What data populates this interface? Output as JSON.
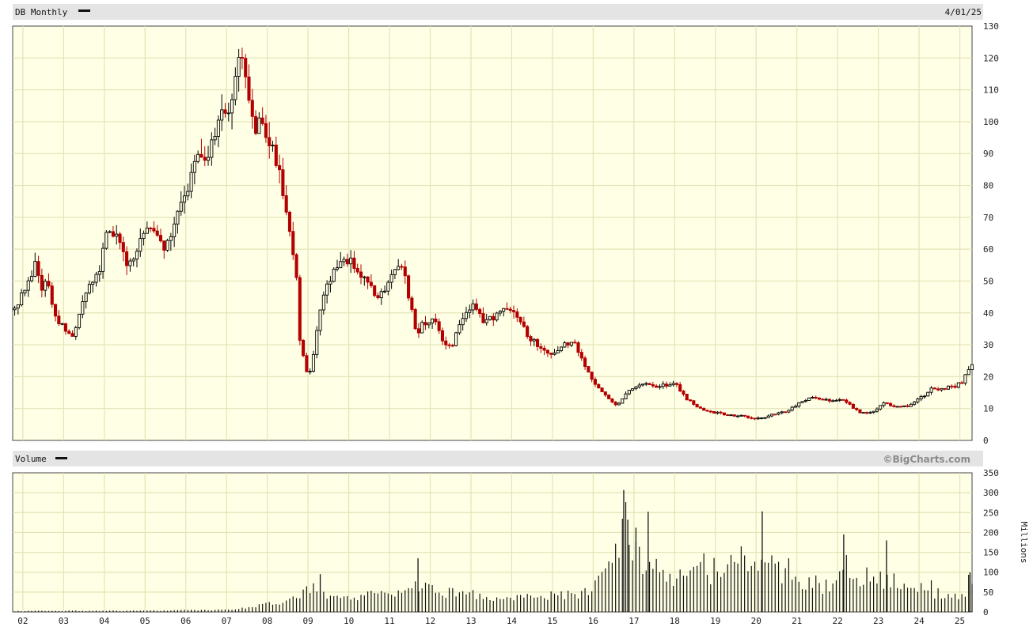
{
  "header": {
    "symbol_label": "DB Monthly",
    "date_label": "4/01/25"
  },
  "volume_header": {
    "label": "Volume",
    "brand": "©BigCharts.com",
    "unit_label": "Millions"
  },
  "colors": {
    "plot_bg": "#ffffe6",
    "grid": "#e3e3b6",
    "header_bg": "#e4e4e4",
    "up": "#000000",
    "down": "#b30000"
  },
  "chart_data": [
    {
      "type": "candlestick",
      "title": "DB Monthly",
      "ylim": [
        0,
        130
      ],
      "yticks": [
        0,
        10,
        20,
        30,
        40,
        50,
        60,
        70,
        80,
        90,
        100,
        110,
        120,
        130
      ],
      "xlim": [
        2001.75,
        2025.3
      ],
      "xticks": [
        {
          "x": 2002,
          "label": "02"
        },
        {
          "x": 2003,
          "label": "03"
        },
        {
          "x": 2004,
          "label": "04"
        },
        {
          "x": 2005,
          "label": "05"
        },
        {
          "x": 2006,
          "label": "06"
        },
        {
          "x": 2007,
          "label": "07"
        },
        {
          "x": 2008,
          "label": "08"
        },
        {
          "x": 2009,
          "label": "09"
        },
        {
          "x": 2010,
          "label": "10"
        },
        {
          "x": 2011,
          "label": "11"
        },
        {
          "x": 2012,
          "label": "12"
        },
        {
          "x": 2013,
          "label": "13"
        },
        {
          "x": 2014,
          "label": "14"
        },
        {
          "x": 2015,
          "label": "15"
        },
        {
          "x": 2016,
          "label": "16"
        },
        {
          "x": 2017,
          "label": "17"
        },
        {
          "x": 2018,
          "label": "18"
        },
        {
          "x": 2019,
          "label": "19"
        },
        {
          "x": 2020,
          "label": "20"
        },
        {
          "x": 2021,
          "label": "21"
        },
        {
          "x": 2022,
          "label": "22"
        },
        {
          "x": 2023,
          "label": "23"
        },
        {
          "x": 2024,
          "label": "24"
        },
        {
          "x": 2025,
          "label": "25"
        }
      ],
      "close_anchors": [
        [
          2001.8,
          41
        ],
        [
          2002.1,
          50
        ],
        [
          2002.3,
          55
        ],
        [
          2002.5,
          47
        ],
        [
          2002.6,
          52
        ],
        [
          2002.8,
          38
        ],
        [
          2003.0,
          36
        ],
        [
          2003.2,
          31
        ],
        [
          2003.4,
          40
        ],
        [
          2003.6,
          48
        ],
        [
          2003.85,
          52
        ],
        [
          2004.0,
          63
        ],
        [
          2004.2,
          66
        ],
        [
          2004.4,
          60
        ],
        [
          2004.6,
          55
        ],
        [
          2004.8,
          59
        ],
        [
          2005.0,
          67
        ],
        [
          2005.3,
          66
        ],
        [
          2005.5,
          60
        ],
        [
          2005.8,
          70
        ],
        [
          2006.0,
          78
        ],
        [
          2006.3,
          92
        ],
        [
          2006.5,
          89
        ],
        [
          2006.7,
          97
        ],
        [
          2006.9,
          102
        ],
        [
          2007.1,
          107
        ],
        [
          2007.35,
          121
        ],
        [
          2007.5,
          112
        ],
        [
          2007.65,
          98
        ],
        [
          2007.85,
          100
        ],
        [
          2008.05,
          93
        ],
        [
          2008.3,
          84
        ],
        [
          2008.5,
          68
        ],
        [
          2008.7,
          55
        ],
        [
          2008.8,
          32
        ],
        [
          2009.0,
          19
        ],
        [
          2009.15,
          28
        ],
        [
          2009.3,
          41
        ],
        [
          2009.5,
          50
        ],
        [
          2009.75,
          55
        ],
        [
          2010.0,
          57
        ],
        [
          2010.25,
          52
        ],
        [
          2010.5,
          48
        ],
        [
          2010.7,
          45
        ],
        [
          2010.9,
          46
        ],
        [
          2011.1,
          53
        ],
        [
          2011.3,
          55
        ],
        [
          2011.5,
          44
        ],
        [
          2011.65,
          33
        ],
        [
          2011.8,
          36
        ],
        [
          2012.1,
          39
        ],
        [
          2012.3,
          32
        ],
        [
          2012.5,
          29
        ],
        [
          2012.8,
          38
        ],
        [
          2013.1,
          43
        ],
        [
          2013.3,
          37
        ],
        [
          2013.6,
          39
        ],
        [
          2013.9,
          42
        ],
        [
          2014.1,
          40
        ],
        [
          2014.4,
          33
        ],
        [
          2014.7,
          29
        ],
        [
          2015.0,
          27
        ],
        [
          2015.2,
          30
        ],
        [
          2015.5,
          31
        ],
        [
          2015.75,
          25
        ],
        [
          2016.0,
          18
        ],
        [
          2016.3,
          14
        ],
        [
          2016.6,
          11
        ],
        [
          2016.9,
          16
        ],
        [
          2017.2,
          18
        ],
        [
          2017.6,
          17
        ],
        [
          2018.0,
          18
        ],
        [
          2018.3,
          13
        ],
        [
          2018.6,
          10
        ],
        [
          2018.9,
          9
        ],
        [
          2019.3,
          8
        ],
        [
          2019.7,
          7.5
        ],
        [
          2020.1,
          7
        ],
        [
          2020.4,
          8
        ],
        [
          2020.8,
          9.5
        ],
        [
          2021.1,
          12
        ],
        [
          2021.4,
          14
        ],
        [
          2021.7,
          12.5
        ],
        [
          2022.1,
          13
        ],
        [
          2022.3,
          11
        ],
        [
          2022.6,
          8.5
        ],
        [
          2022.9,
          9
        ],
        [
          2023.1,
          12
        ],
        [
          2023.4,
          10.5
        ],
        [
          2023.8,
          11
        ],
        [
          2024.0,
          13
        ],
        [
          2024.3,
          16
        ],
        [
          2024.6,
          16.5
        ],
        [
          2024.9,
          17
        ],
        [
          2025.1,
          19
        ],
        [
          2025.25,
          24
        ]
      ]
    },
    {
      "type": "bar",
      "title": "Volume",
      "ylabel": "Millions",
      "ylim": [
        0,
        350
      ],
      "yticks": [
        0,
        50,
        100,
        150,
        200,
        250,
        300,
        350
      ],
      "volume_anchors": [
        [
          2001.8,
          2
        ],
        [
          2003.0,
          3
        ],
        [
          2005.0,
          3
        ],
        [
          2006.5,
          5
        ],
        [
          2007.3,
          8
        ],
        [
          2008.0,
          20
        ],
        [
          2008.5,
          30
        ],
        [
          2008.9,
          55
        ],
        [
          2009.2,
          70
        ],
        [
          2009.5,
          35
        ],
        [
          2010.0,
          40
        ],
        [
          2010.5,
          45
        ],
        [
          2011.0,
          38
        ],
        [
          2011.5,
          55
        ],
        [
          2011.8,
          70
        ],
        [
          2012.3,
          50
        ],
        [
          2012.8,
          45
        ],
        [
          2013.3,
          40
        ],
        [
          2013.8,
          30
        ],
        [
          2014.3,
          35
        ],
        [
          2014.8,
          40
        ],
        [
          2015.3,
          45
        ],
        [
          2015.8,
          50
        ],
        [
          2016.2,
          80
        ],
        [
          2016.6,
          130
        ],
        [
          2016.8,
          220
        ],
        [
          2017.1,
          150
        ],
        [
          2017.5,
          100
        ],
        [
          2018.0,
          90
        ],
        [
          2018.4,
          115
        ],
        [
          2018.9,
          100
        ],
        [
          2019.5,
          110
        ],
        [
          2020.0,
          125
        ],
        [
          2020.4,
          110
        ],
        [
          2020.8,
          85
        ],
        [
          2021.2,
          70
        ],
        [
          2021.7,
          65
        ],
        [
          2022.2,
          115
        ],
        [
          2022.6,
          95
        ],
        [
          2023.0,
          85
        ],
        [
          2023.4,
          65
        ],
        [
          2023.8,
          60
        ],
        [
          2024.2,
          55
        ],
        [
          2024.6,
          45
        ],
        [
          2024.9,
          35
        ],
        [
          2025.2,
          60
        ]
      ],
      "volume_spikes": [
        [
          2016.75,
          307
        ],
        [
          2016.85,
          232
        ],
        [
          2017.05,
          212
        ],
        [
          2017.35,
          252
        ],
        [
          2020.15,
          253
        ],
        [
          2022.15,
          195
        ],
        [
          2023.2,
          180
        ],
        [
          2011.7,
          135
        ],
        [
          2009.3,
          95
        ],
        [
          2025.25,
          100
        ]
      ]
    }
  ]
}
